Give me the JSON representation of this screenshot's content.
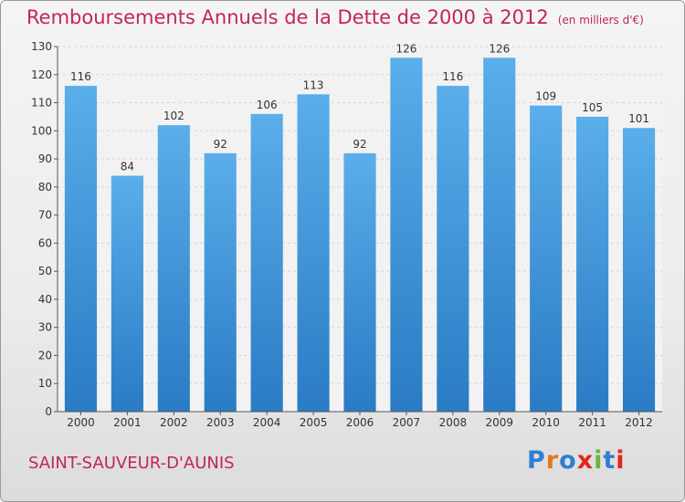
{
  "header": {
    "title": "Remboursements Annuels de la Dette de 2000 à 2012",
    "unit": "(en milliers d'€)"
  },
  "footer": {
    "commune": "SAINT-SAUVEUR-D'AUNIS",
    "logo": "Proxiti",
    "logo_colors": [
      "#2f7fd1",
      "#e07b1c",
      "#2f7fd1",
      "#e2261d",
      "#6db33f",
      "#2f7fd1",
      "#e2261d"
    ]
  },
  "colors": {
    "bar": "#4aa0e2",
    "bar_dark": "#2b7cc6",
    "text": "#333333",
    "accent": "#c2255a"
  },
  "chart_data": {
    "type": "bar",
    "title": "Remboursements Annuels de la Dette de 2000 à 2012",
    "xlabel": "",
    "ylabel": "",
    "categories": [
      "2000",
      "2001",
      "2002",
      "2003",
      "2004",
      "2005",
      "2006",
      "2007",
      "2008",
      "2009",
      "2010",
      "2011",
      "2012"
    ],
    "values": [
      116,
      84,
      102,
      92,
      106,
      113,
      92,
      126,
      116,
      126,
      109,
      105,
      101
    ],
    "ylim": [
      0,
      130
    ],
    "yticks": [
      0,
      10,
      20,
      30,
      40,
      50,
      60,
      70,
      80,
      90,
      100,
      110,
      120,
      130
    ],
    "grid": true,
    "legend": "none"
  }
}
